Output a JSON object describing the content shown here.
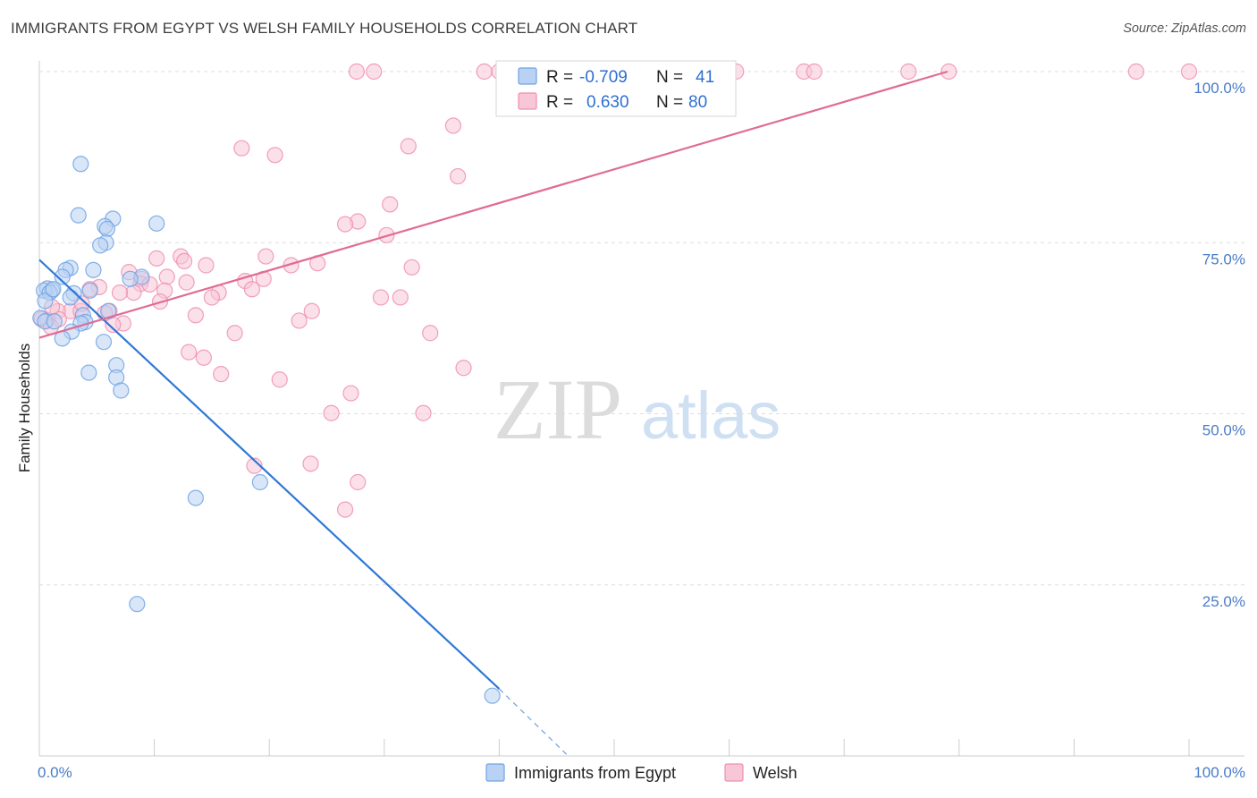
{
  "title": "IMMIGRANTS FROM EGYPT VS WELSH FAMILY HOUSEHOLDS CORRELATION CHART",
  "source": "Source: ZipAtlas.com",
  "watermark": {
    "zip": "ZIP",
    "atlas": "atlas"
  },
  "colors": {
    "egypt": "#6fa3e4",
    "egypt_fill": "#b9d2f3",
    "egypt_line": "#2f78d6",
    "welsh": "#ee8fb0",
    "welsh_fill": "#f7c7d7",
    "welsh_line": "#e06b96",
    "tick": "#4a7bc8",
    "grid": "#dddddd"
  },
  "stats": {
    "egypt": {
      "r_label": "R =",
      "r_value": "-0.709",
      "n_label": "N =",
      "n_value": "41"
    },
    "welsh": {
      "r_label": "R =",
      "r_value": "0.630",
      "n_label": "N =",
      "n_value": "80"
    }
  },
  "chart_data": {
    "type": "scatter",
    "title": "IMMIGRANTS FROM EGYPT VS WELSH FAMILY HOUSEHOLDS CORRELATION CHART",
    "xlabel": "",
    "ylabel": "Family Households",
    "xlim": [
      0,
      100
    ],
    "ylim": [
      0,
      100
    ],
    "x_tick_labels": [
      "0.0%",
      "100.0%"
    ],
    "y_ticks": [
      25,
      50,
      75,
      100
    ],
    "y_tick_labels": [
      "25.0%",
      "50.0%",
      "75.0%",
      "100.0%"
    ],
    "grid": true,
    "legend_position": "bottom-center",
    "series": [
      {
        "name": "Immigrants from Egypt",
        "color": "#6fa3e4",
        "trend": {
          "x": [
            0,
            40
          ],
          "y": [
            72.5,
            9.8
          ],
          "dashed_to": [
            46,
            0
          ]
        },
        "points": [
          {
            "x": 3.6,
            "y": 86.5
          },
          {
            "x": 3.4,
            "y": 79
          },
          {
            "x": 6.4,
            "y": 78.5
          },
          {
            "x": 10.2,
            "y": 77.8
          },
          {
            "x": 5.7,
            "y": 77.4
          },
          {
            "x": 5.9,
            "y": 77
          },
          {
            "x": 5.8,
            "y": 75
          },
          {
            "x": 5.3,
            "y": 74.6
          },
          {
            "x": 2.7,
            "y": 71.3
          },
          {
            "x": 2.3,
            "y": 71
          },
          {
            "x": 4.7,
            "y": 71
          },
          {
            "x": 2,
            "y": 70
          },
          {
            "x": 8.9,
            "y": 70
          },
          {
            "x": 7.9,
            "y": 69.7
          },
          {
            "x": 0.7,
            "y": 68.3
          },
          {
            "x": 1.1,
            "y": 68
          },
          {
            "x": 4.4,
            "y": 68
          },
          {
            "x": 0.4,
            "y": 68
          },
          {
            "x": 0.9,
            "y": 67.7
          },
          {
            "x": 3,
            "y": 67.6
          },
          {
            "x": 2.7,
            "y": 67
          },
          {
            "x": 0.5,
            "y": 66.5
          },
          {
            "x": 6,
            "y": 65
          },
          {
            "x": 3.8,
            "y": 64.4
          },
          {
            "x": 0.1,
            "y": 64
          },
          {
            "x": 0.5,
            "y": 63.5
          },
          {
            "x": 1.3,
            "y": 63.5
          },
          {
            "x": 4,
            "y": 63.4
          },
          {
            "x": 3.6,
            "y": 63.2
          },
          {
            "x": 2.8,
            "y": 62
          },
          {
            "x": 2,
            "y": 61
          },
          {
            "x": 5.6,
            "y": 60.5
          },
          {
            "x": 6.7,
            "y": 57.1
          },
          {
            "x": 4.3,
            "y": 56
          },
          {
            "x": 6.7,
            "y": 55.3
          },
          {
            "x": 7.1,
            "y": 53.4
          },
          {
            "x": 19.2,
            "y": 40
          },
          {
            "x": 13.6,
            "y": 37.7
          },
          {
            "x": 8.5,
            "y": 22.2
          },
          {
            "x": 39.4,
            "y": 8.8
          },
          {
            "x": 1.2,
            "y": 68.2
          }
        ]
      },
      {
        "name": "Welsh",
        "color": "#ee8fb0",
        "trend": {
          "x": [
            0,
            79
          ],
          "y": [
            61.1,
            100
          ]
        },
        "points": [
          {
            "x": 27.6,
            "y": 100
          },
          {
            "x": 29.1,
            "y": 100
          },
          {
            "x": 38.7,
            "y": 100
          },
          {
            "x": 40,
            "y": 100
          },
          {
            "x": 45.6,
            "y": 100
          },
          {
            "x": 46.7,
            "y": 100
          },
          {
            "x": 55.3,
            "y": 100
          },
          {
            "x": 60.6,
            "y": 100
          },
          {
            "x": 66.5,
            "y": 100
          },
          {
            "x": 67.4,
            "y": 100
          },
          {
            "x": 75.6,
            "y": 100
          },
          {
            "x": 79.1,
            "y": 100
          },
          {
            "x": 95.4,
            "y": 100
          },
          {
            "x": 100,
            "y": 100
          },
          {
            "x": 36,
            "y": 92.1
          },
          {
            "x": 32.1,
            "y": 89.1
          },
          {
            "x": 17.6,
            "y": 88.8
          },
          {
            "x": 20.5,
            "y": 87.8
          },
          {
            "x": 36.4,
            "y": 84.7
          },
          {
            "x": 30.5,
            "y": 80.6
          },
          {
            "x": 27.7,
            "y": 78.1
          },
          {
            "x": 26.6,
            "y": 77.7
          },
          {
            "x": 30.2,
            "y": 76.1
          },
          {
            "x": 12.3,
            "y": 73
          },
          {
            "x": 19.7,
            "y": 73
          },
          {
            "x": 10.2,
            "y": 72.7
          },
          {
            "x": 12.6,
            "y": 72.3
          },
          {
            "x": 24.2,
            "y": 72
          },
          {
            "x": 14.5,
            "y": 71.7
          },
          {
            "x": 21.9,
            "y": 71.7
          },
          {
            "x": 32.4,
            "y": 71.4
          },
          {
            "x": 7.8,
            "y": 70.7
          },
          {
            "x": 11.1,
            "y": 70
          },
          {
            "x": 17.9,
            "y": 69.4
          },
          {
            "x": 19.5,
            "y": 69.7
          },
          {
            "x": 8.9,
            "y": 69.7
          },
          {
            "x": 12.8,
            "y": 69.2
          },
          {
            "x": 8.8,
            "y": 69
          },
          {
            "x": 5.2,
            "y": 68.5
          },
          {
            "x": 4.4,
            "y": 68.2
          },
          {
            "x": 18.5,
            "y": 68.2
          },
          {
            "x": 10.9,
            "y": 68
          },
          {
            "x": 8.2,
            "y": 67.7
          },
          {
            "x": 7,
            "y": 67.7
          },
          {
            "x": 15.6,
            "y": 67.7
          },
          {
            "x": 15,
            "y": 67
          },
          {
            "x": 29.7,
            "y": 67
          },
          {
            "x": 31.4,
            "y": 67
          },
          {
            "x": 10.5,
            "y": 66.4
          },
          {
            "x": 2.7,
            "y": 65
          },
          {
            "x": 3.6,
            "y": 65
          },
          {
            "x": 1.6,
            "y": 65
          },
          {
            "x": 6.1,
            "y": 65
          },
          {
            "x": 5.7,
            "y": 64.7
          },
          {
            "x": 23.7,
            "y": 65
          },
          {
            "x": 13.6,
            "y": 64.4
          },
          {
            "x": 1.7,
            "y": 63.8
          },
          {
            "x": 0.2,
            "y": 63.8
          },
          {
            "x": 0.7,
            "y": 63.7
          },
          {
            "x": 22.6,
            "y": 63.6
          },
          {
            "x": 7.3,
            "y": 63.2
          },
          {
            "x": 6.4,
            "y": 63
          },
          {
            "x": 1,
            "y": 62.7
          },
          {
            "x": 17,
            "y": 61.8
          },
          {
            "x": 34,
            "y": 61.8
          },
          {
            "x": 13,
            "y": 59
          },
          {
            "x": 14.3,
            "y": 58.2
          },
          {
            "x": 36.9,
            "y": 56.7
          },
          {
            "x": 15.8,
            "y": 55.8
          },
          {
            "x": 20.9,
            "y": 55
          },
          {
            "x": 27.1,
            "y": 53
          },
          {
            "x": 25.4,
            "y": 50.1
          },
          {
            "x": 33.4,
            "y": 50.1
          },
          {
            "x": 23.6,
            "y": 42.7
          },
          {
            "x": 18.7,
            "y": 42.4
          },
          {
            "x": 27.7,
            "y": 40
          },
          {
            "x": 26.6,
            "y": 36
          },
          {
            "x": 1.1,
            "y": 65.6
          },
          {
            "x": 3.7,
            "y": 66.1
          },
          {
            "x": 9.6,
            "y": 68.9
          }
        ]
      }
    ]
  }
}
